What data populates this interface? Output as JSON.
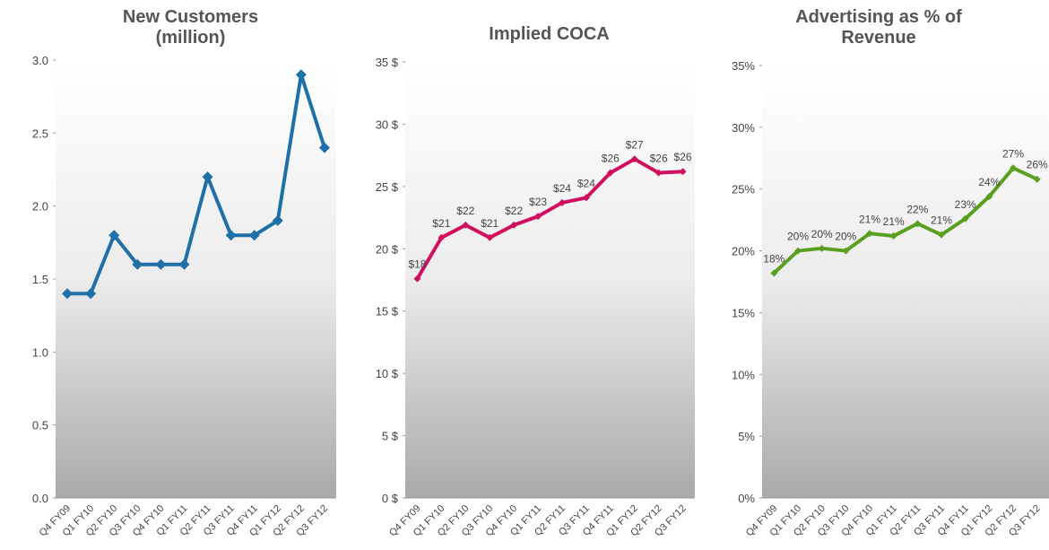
{
  "chart_data": [
    {
      "type": "line",
      "title": "New Customers (million)",
      "categories": [
        "Q4 FY09",
        "Q1 FY10",
        "Q2 FY10",
        "Q3 FY10",
        "Q4 FY10",
        "Q1 FY11",
        "Q2 FY11",
        "Q3 FY11",
        "Q4 FY11",
        "Q1 FY12",
        "Q2 FY12",
        "Q3 FY12"
      ],
      "series": [
        {
          "color": "#1f6fa8",
          "values": [
            1.4,
            1.4,
            1.8,
            1.6,
            1.6,
            1.6,
            2.2,
            1.8,
            1.8,
            1.9,
            2.9,
            2.4
          ]
        }
      ],
      "ylim": [
        0,
        3
      ],
      "yticks": [
        {
          "value": 0,
          "label": "0.0"
        },
        0.5,
        {
          "value": 1,
          "label": "1.0"
        },
        1.5,
        {
          "value": 2,
          "label": "2.0"
        },
        2.5,
        {
          "value": 3,
          "label": "3.0"
        }
      ]
    },
    {
      "type": "line",
      "title": "Implied COCA",
      "categories": [
        "Q4 FY09",
        "Q1 FY10",
        "Q2 FY10",
        "Q3 FY10",
        "Q4 FY10",
        "Q1 FY11",
        "Q2 FY11",
        "Q3 FY11",
        "Q4 FY11",
        "Q1 FY12",
        "Q2 FY12",
        "Q3 FY12"
      ],
      "series": [
        {
          "color": "#d0105f",
          "values": [
            17.6,
            20.9,
            21.9,
            20.9,
            21.9,
            22.6,
            23.7,
            24.1,
            26.1,
            27.2,
            26.1,
            26.2
          ],
          "value_labels": [
            "$18",
            "$21",
            "$22",
            "$21",
            "$22",
            "$23",
            "$24",
            "$24",
            "$26",
            "$27",
            "$26",
            "$26"
          ]
        }
      ],
      "ylim": [
        0,
        35
      ],
      "yticks": [
        {
          "value": 0,
          "label": "0 $"
        },
        {
          "value": 5,
          "label": "5 $"
        },
        {
          "value": 10,
          "label": "10 $"
        },
        {
          "value": 15,
          "label": "15 $"
        },
        {
          "value": 20,
          "label": "20 $"
        },
        {
          "value": 25,
          "label": "25 $"
        },
        {
          "value": 30,
          "label": "30 $"
        },
        {
          "value": 35,
          "label": "35 $"
        }
      ]
    },
    {
      "type": "line",
      "title": "Advertising as % of Revenue",
      "categories": [
        "Q4 FY09",
        "Q1 FY10",
        "Q2 FY10",
        "Q3 FY10",
        "Q4 FY10",
        "Q1 FY11",
        "Q2 FY11",
        "Q3 FY11",
        "Q4 FY11",
        "Q1 FY12",
        "Q2 FY12",
        "Q3 FY12"
      ],
      "series": [
        {
          "color": "#5aa020",
          "values": [
            18.2,
            20.0,
            20.2,
            20.0,
            21.4,
            21.2,
            22.2,
            21.3,
            22.6,
            24.4,
            26.7,
            25.8
          ],
          "value_labels": [
            "18%",
            "20%",
            "20%",
            "20%",
            "21%",
            "21%",
            "22%",
            "21%",
            "23%",
            "24%",
            "27%",
            "26%"
          ]
        }
      ],
      "ylim": [
        0,
        35
      ],
      "yticks": [
        {
          "value": 0,
          "label": "0%"
        },
        {
          "value": 5,
          "label": "5%"
        },
        {
          "value": 10,
          "label": "10%"
        },
        {
          "value": 15,
          "label": "15%"
        },
        {
          "value": 20,
          "label": "20%"
        },
        {
          "value": 25,
          "label": "25%"
        },
        {
          "value": 30,
          "label": "30%"
        },
        {
          "value": 35,
          "label": "35%"
        }
      ]
    }
  ]
}
